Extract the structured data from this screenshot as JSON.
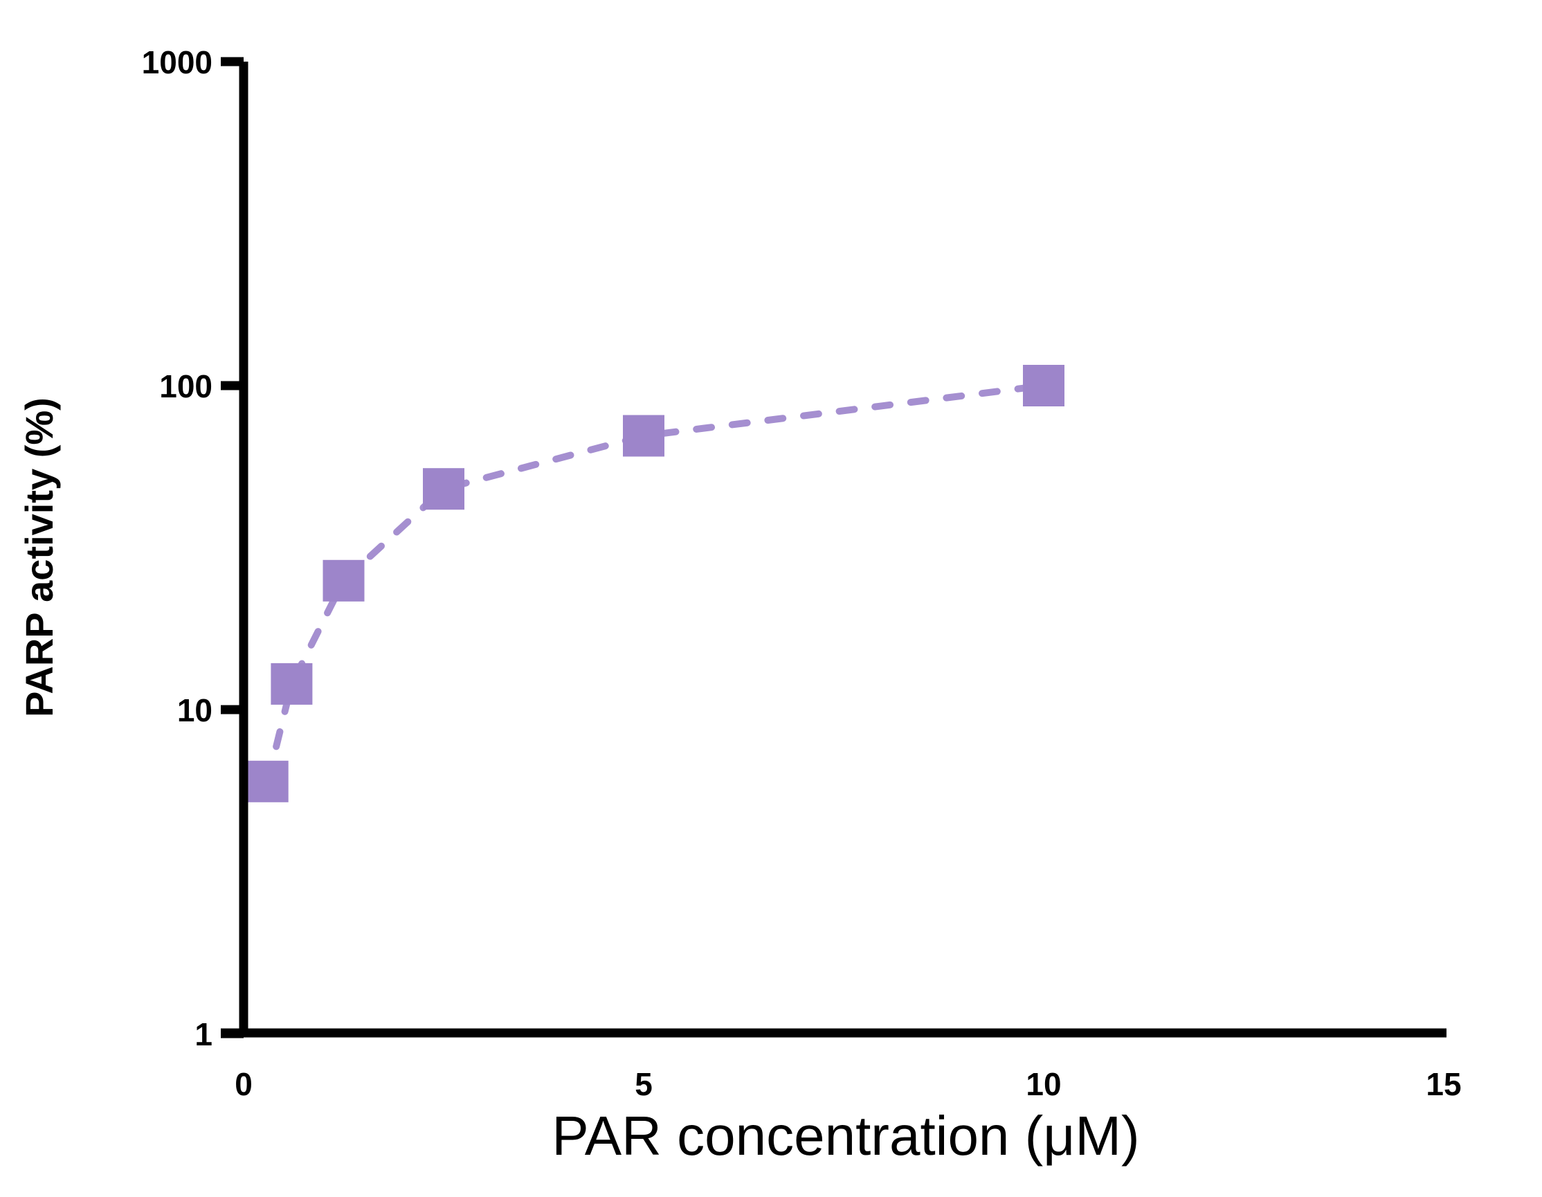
{
  "chart_data": {
    "type": "scatter",
    "title": "",
    "xlabel": "PAR concentration (μM)",
    "ylabel": "PARP activity (%)",
    "series": [
      {
        "name": "PARP activity",
        "x": [
          0.3,
          0.6,
          1.25,
          2.5,
          5,
          10
        ],
        "y": [
          6,
          12,
          25,
          48,
          70,
          100
        ]
      }
    ],
    "x_scale": "linear",
    "x_range": [
      0,
      15
    ],
    "x_ticks": [
      0,
      5,
      10,
      15
    ],
    "y_scale": "log10",
    "y_range": [
      1,
      1000
    ],
    "y_ticks": [
      1,
      10,
      100,
      1000
    ],
    "grid": false,
    "legend_position": "none",
    "line_style": "dashed",
    "marker_shape": "square",
    "marker_color": "#9D85CA",
    "line_color": "#A58FD0",
    "axis_color": "#000000",
    "text_color": "#000000",
    "background_color": "#FFFFFF"
  }
}
